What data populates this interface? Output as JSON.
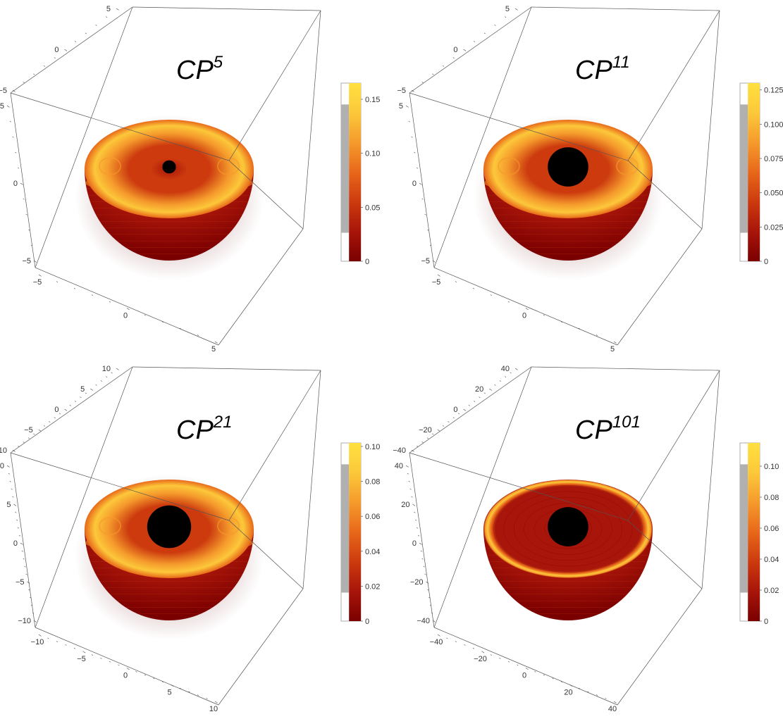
{
  "colors": {
    "box_line": "#555555",
    "ball_fill": "#000000",
    "colormap": [
      "#7a0000",
      "#a8150a",
      "#cc3a0e",
      "#e8681a",
      "#f59a2c",
      "#fcc83a",
      "#ffe03f"
    ]
  },
  "chart_data": [
    {
      "type": "3d-density-hemisphere",
      "title_base": "CP",
      "title_exp": "5",
      "colorbar": {
        "min": 0,
        "max": 0.165,
        "ticks": [
          "0.15",
          "0.10",
          "0.05",
          "0"
        ],
        "tick_values": [
          0.15,
          0.1,
          0.05,
          0
        ]
      },
      "axes": {
        "back": [
          "5",
          "0",
          "−5"
        ],
        "left": [
          "5",
          "0",
          "−5"
        ],
        "front": [
          "−5",
          "0",
          "5"
        ]
      },
      "core_ratio": 0.08,
      "rim": "soft"
    },
    {
      "type": "3d-density-hemisphere",
      "title_base": "CP",
      "title_exp": "11",
      "colorbar": {
        "min": 0,
        "max": 0.13,
        "ticks": [
          "0.125",
          "0.100",
          "0.075",
          "0.050",
          "0.025",
          "0"
        ],
        "tick_values": [
          0.125,
          0.1,
          0.075,
          0.05,
          0.025,
          0
        ]
      },
      "axes": {
        "back": [
          "5",
          "0",
          "−5"
        ],
        "left": [
          "5",
          "0",
          "−5"
        ],
        "front": [
          "−5",
          "0",
          "5"
        ]
      },
      "core_ratio": 0.24,
      "rim": "soft"
    },
    {
      "type": "3d-density-hemisphere",
      "title_base": "CP",
      "title_exp": "21",
      "colorbar": {
        "min": 0,
        "max": 0.102,
        "ticks": [
          "0.10",
          "0.08",
          "0.06",
          "0.04",
          "0.02",
          "0"
        ],
        "tick_values": [
          0.1,
          0.08,
          0.06,
          0.04,
          0.02,
          0
        ]
      },
      "axes": {
        "back": [
          "10",
          "5",
          "0",
          "−5",
          "−10"
        ],
        "left": [
          "10",
          "5",
          "0",
          "−5",
          "−10"
        ],
        "front": [
          "−10",
          "−5",
          "0",
          "5",
          "10"
        ]
      },
      "core_ratio": 0.26,
      "rim": "soft"
    },
    {
      "type": "3d-density-hemisphere",
      "title_base": "CP",
      "title_exp": "101",
      "colorbar": {
        "min": 0,
        "max": 0.115,
        "ticks": [
          "0.10",
          "0.08",
          "0.06",
          "0.04",
          "0.02",
          "0"
        ],
        "tick_values": [
          0.1,
          0.08,
          0.06,
          0.04,
          0.02,
          0
        ]
      },
      "axes": {
        "back": [
          "40",
          "20",
          "0",
          "−20",
          "−40"
        ],
        "left": [
          "40",
          "20",
          "0",
          "−20",
          "−40"
        ],
        "front": [
          "−40",
          "−20",
          "0",
          "20",
          "40"
        ]
      },
      "core_ratio": 0.24,
      "rim": "sharp"
    }
  ]
}
